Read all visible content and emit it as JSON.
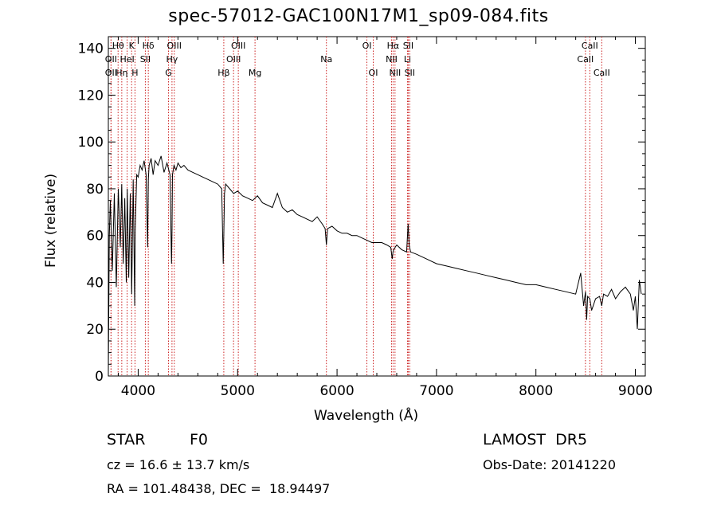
{
  "chart_data": {
    "type": "line",
    "title": "spec-57012-GAC100N17M1_sp09-084.fits",
    "xlabel": "Wavelength (Å)",
    "ylabel": "Flux (relative)",
    "xlim": [
      3700,
      9100
    ],
    "ylim": [
      0,
      145
    ],
    "xticks": [
      4000,
      5000,
      6000,
      7000,
      8000,
      9000
    ],
    "yticks": [
      0,
      20,
      40,
      60,
      80,
      100,
      120,
      140
    ],
    "grid": false,
    "line_color": "#000000",
    "marker_color": "#cc2222",
    "series": [
      {
        "x": [
          3700,
          3710,
          3720,
          3740,
          3760,
          3780,
          3800,
          3820,
          3835,
          3850,
          3865,
          3880,
          3890,
          3905,
          3920,
          3935,
          3950,
          3965,
          3970,
          3985,
          4000,
          4020,
          4040,
          4060,
          4080,
          4095,
          4102,
          4110,
          4130,
          4150,
          4170,
          4200,
          4230,
          4260,
          4290,
          4320,
          4335,
          4340,
          4345,
          4360,
          4380,
          4400,
          4430,
          4460,
          4500,
          4550,
          4600,
          4650,
          4700,
          4750,
          4800,
          4840,
          4855,
          4861,
          4868,
          4880,
          4920,
          4960,
          5000,
          5050,
          5100,
          5150,
          5200,
          5250,
          5300,
          5350,
          5400,
          5450,
          5500,
          5550,
          5600,
          5650,
          5700,
          5750,
          5800,
          5850,
          5880,
          5893,
          5905,
          5950,
          6000,
          6050,
          6100,
          6150,
          6200,
          6250,
          6300,
          6350,
          6400,
          6450,
          6500,
          6540,
          6555,
          6563,
          6570,
          6585,
          6600,
          6650,
          6700,
          6715,
          6725,
          6740,
          6800,
          6900,
          7000,
          7100,
          7200,
          7300,
          7400,
          7500,
          7600,
          7700,
          7800,
          7900,
          8000,
          8100,
          8200,
          8300,
          8400,
          8450,
          8480,
          8498,
          8510,
          8520,
          8542,
          8560,
          8600,
          8640,
          8662,
          8680,
          8720,
          8760,
          8800,
          8850,
          8900,
          8950,
          8980,
          9000,
          9020,
          9040,
          9060
        ],
        "y": [
          2,
          60,
          75,
          45,
          78,
          38,
          80,
          55,
          82,
          48,
          76,
          40,
          80,
          42,
          78,
          35,
          84,
          30,
          62,
          86,
          85,
          90,
          88,
          92,
          86,
          55,
          84,
          90,
          93,
          86,
          92,
          90,
          94,
          87,
          91,
          86,
          48,
          62,
          86,
          90,
          88,
          91,
          89,
          90,
          88,
          87,
          86,
          85,
          84,
          83,
          82,
          80,
          48,
          60,
          78,
          82,
          80,
          78,
          79,
          77,
          76,
          75,
          77,
          74,
          73,
          72,
          78,
          72,
          70,
          71,
          69,
          68,
          67,
          66,
          68,
          65,
          63,
          56,
          63,
          64,
          62,
          61,
          61,
          60,
          60,
          59,
          58,
          57,
          57,
          57,
          56,
          55,
          50,
          53,
          54,
          55,
          56,
          54,
          53,
          65,
          56,
          53,
          52,
          50,
          48,
          47,
          46,
          45,
          44,
          43,
          42,
          41,
          40,
          39,
          39,
          38,
          37,
          36,
          35,
          44,
          30,
          36,
          24,
          34,
          33,
          28,
          33,
          34,
          30,
          35,
          34,
          37,
          33,
          36,
          38,
          35,
          28,
          34,
          20,
          41,
          35
        ]
      }
    ],
    "lines": [
      {
        "label": "OII",
        "x": 3727,
        "row": 3
      },
      {
        "label": "Hθ",
        "x": 3798,
        "row": 1
      },
      {
        "label": "OII",
        "x": 3727,
        "row": 2
      },
      {
        "label": "Hη",
        "x": 3835,
        "row": 3
      },
      {
        "label": "HeI",
        "x": 3889,
        "row": 2
      },
      {
        "label": "K",
        "x": 3934,
        "row": 1
      },
      {
        "label": "H",
        "x": 3968,
        "row": 3
      },
      {
        "label": "SII",
        "x": 4072,
        "row": 2
      },
      {
        "label": "Hδ",
        "x": 4102,
        "row": 1
      },
      {
        "label": "OIII",
        "x": 4363,
        "row": 1
      },
      {
        "label": "Hγ",
        "x": 4340,
        "row": 2
      },
      {
        "label": "G",
        "x": 4305,
        "row": 3
      },
      {
        "label": "Hβ",
        "x": 4861,
        "row": 3
      },
      {
        "label": "OIII",
        "x": 4959,
        "row": 2
      },
      {
        "label": "OIII",
        "x": 5007,
        "row": 1
      },
      {
        "label": "Mg",
        "x": 5175,
        "row": 3
      },
      {
        "label": "Na",
        "x": 5893,
        "row": 2
      },
      {
        "label": "OI",
        "x": 6300,
        "row": 1
      },
      {
        "label": "OI",
        "x": 6364,
        "row": 3
      },
      {
        "label": "Hα",
        "x": 6563,
        "row": 1
      },
      {
        "label": "NII",
        "x": 6548,
        "row": 2
      },
      {
        "label": "NII",
        "x": 6583,
        "row": 3
      },
      {
        "label": "SII",
        "x": 6716,
        "row": 1
      },
      {
        "label": "Li",
        "x": 6708,
        "row": 2
      },
      {
        "label": "SII",
        "x": 6731,
        "row": 3
      },
      {
        "label": "CaII",
        "x": 8542,
        "row": 1
      },
      {
        "label": "CaII",
        "x": 8498,
        "row": 2
      },
      {
        "label": "CaII",
        "x": 8662,
        "row": 3
      }
    ]
  },
  "info": {
    "object_class": "STAR",
    "subclass": "F0",
    "survey": "LAMOST  DR5",
    "redshift": "cz = 16.6 ± 13.7 km/s",
    "obs_date": "Obs-Date: 20141220",
    "coords": "RA = 101.48438, DEC =  18.94497"
  }
}
